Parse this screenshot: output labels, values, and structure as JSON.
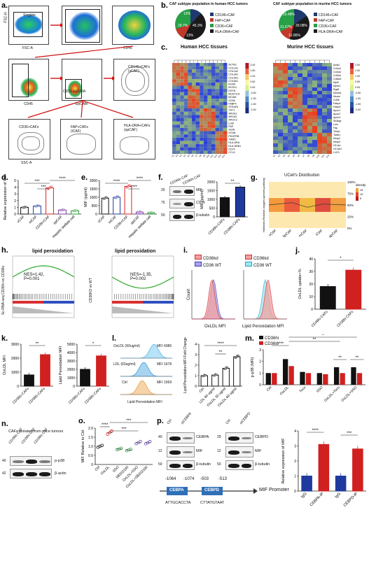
{
  "labels": {
    "a": "a.",
    "b": "b.",
    "c": "c.",
    "d": "d.",
    "e": "e.",
    "f": "f.",
    "g": "g.",
    "h": "h.",
    "i": "i.",
    "j": "j.",
    "k": "k.",
    "l": "l.",
    "m": "m.",
    "n": "n.",
    "o": "o.",
    "p": "p."
  },
  "a": {
    "gates": [
      "Singlets",
      "Live",
      "CD146+",
      "CD31-EpCAM-",
      "CD146+CAFs (vCAF)",
      "CD36+CAFs",
      "FAP+CAFs (iCAF)",
      "HLA-DRA+CAFs (apCAF)"
    ],
    "axes": [
      "FSC-H",
      "FSC-A",
      "SSC-A",
      "Livedead",
      "CD45",
      "CD31",
      "EpCAM",
      "CD146",
      "CD36",
      "FAP",
      "HLA-DRA"
    ]
  },
  "b": {
    "human_title": "CAF subtype population in human HCC tumors",
    "murine_title": "CAF subtype population in murine HCC tumors",
    "human_pcts": [
      "12%",
      "45.3%",
      "13%",
      "29.7%"
    ],
    "murine_pcts": [
      "15.48%",
      "39.08%",
      "12.86%",
      "31.67%"
    ],
    "legend": [
      "CD146+CAF",
      "FAP+CAF",
      "CD36+CAF",
      "HLA-DRA+CAF"
    ],
    "colors": [
      "#1f3a6e",
      "#c0392b",
      "#27a046",
      "#1a1a1a"
    ]
  },
  "c": {
    "human_title": "Human HCC tissues",
    "murine_title": "Murine HCC tissues",
    "human_genes": [
      "ACTA2",
      "COL1A1",
      "COL1A2",
      "COL3A1",
      "COL5A1",
      "COL6A1",
      "RGS5",
      "MYH11",
      "DSTN",
      "MUST101",
      "MCAM",
      "CD36",
      "FABP4",
      "STEAP4",
      "THY1",
      "APOA1",
      "APOA2",
      "APOC3",
      "LUM",
      "FAP",
      "SGIN",
      "VCAN",
      "PDGFRB",
      "TIMP1",
      "HLA-DRA",
      "HLA-DRB1",
      "CD74",
      "CCL5"
    ],
    "murine_genes": [
      "Acta2",
      "Col1a1",
      "Col1a2",
      "Col3a1",
      "Col6a3",
      "Myl9",
      "Myh11",
      "Rgs5",
      "Mustn1",
      "Mcam",
      "Cd36",
      "Fabp4",
      "Fabp5",
      "Apoc1",
      "Apoc2",
      "Apoc3",
      "Sh3bgr",
      "Lum",
      "Fap",
      "Timp1",
      "Twist1",
      "Mmp2",
      "Mmp3",
      "H2-Aa",
      "H2-Ab1",
      "Cd74"
    ],
    "scale": [
      "2.00",
      "1.50",
      "1.00",
      "0.50",
      "0.00",
      "-0.50",
      "-1.00",
      "-1.50",
      "-2.00"
    ]
  },
  "d": {
    "ylabel": "Relative expression of MIF",
    "categories": [
      "vCAF",
      "mCAF",
      "CD36+CAF",
      "apCAF",
      "Hepatic stellate cell"
    ],
    "values": [
      1.0,
      1.2,
      3.9,
      0.6,
      0.5
    ],
    "ylim": [
      0,
      5
    ],
    "ticks": [
      "0",
      "1",
      "2",
      "3",
      "4",
      "5"
    ],
    "sig": [
      "***",
      "***",
      "****"
    ]
  },
  "e": {
    "ylabel": "MIF (pg/ml)",
    "categories": [
      "vCAF",
      "mCAF",
      "CD36+CAF",
      "apCAF",
      "Hepatic stellate cell"
    ],
    "values": [
      950,
      1000,
      1650,
      120,
      80
    ],
    "ylim": [
      0,
      2000
    ],
    "ticks": [
      "0",
      "500",
      "1000",
      "1500",
      "2000"
    ],
    "sig": [
      "****",
      "****",
      "****"
    ]
  },
  "f": {
    "lanes": [
      "CD36lo CAF",
      "CD36hi CAF"
    ],
    "markers": [
      "25",
      "75",
      "50"
    ],
    "bands": [
      "MIF",
      "CD36",
      "β-tubulin"
    ],
    "ylabel": "MIF (pg/ml)",
    "categories": [
      "CD36lo CAFs",
      "CD36hi CAFs"
    ],
    "values": [
      1100,
      1700
    ],
    "ylim": [
      0,
      2000
    ],
    "ticks": [
      "0",
      "500",
      "1000",
      "1500",
      "2000"
    ],
    "sig": "**"
  },
  "g": {
    "title": "UCell's Distribution",
    "ylabel": "Hallmark-Reactive-oxygen-species-pathway",
    "categories": [
      "vCAF",
      "lipCAF",
      "mCAF",
      "iCAF",
      "apCAF"
    ],
    "pcts": [
      "100%",
      "75%",
      "50%",
      "25%",
      "0%"
    ],
    "legend_title": "density",
    "legend_vals": [
      "15",
      "10",
      "5"
    ]
  },
  "h": {
    "left_title": "lipid peroxidation",
    "right_title": "lipid peroxidation",
    "left_stats": "NES=1.42, P=0.001",
    "right_stats": "NES=-1.35, P=0.002",
    "left_ylabel": "Sc-RNA-seq CD36hi vs CD36lo",
    "right_ylabel": "CD36KO vs WT"
  },
  "i": {
    "legend1": [
      "CD36kd",
      "CD36 WT"
    ],
    "legend2": [
      "CD36kd",
      "CD36 WT"
    ],
    "xlabel1": "OxLDL MFI",
    "xlabel2": "Lipid Peroxidation MFI",
    "ylabel": "Count"
  },
  "j": {
    "ylabel": "OxLDL uptake+%",
    "categories": [
      "CD36lo CAFs",
      "CD36hi CAFs"
    ],
    "values": [
      18,
      31
    ],
    "ylim": [
      0,
      40
    ],
    "ticks": [
      "0",
      "10",
      "20",
      "30",
      "40"
    ],
    "sig": "*"
  },
  "k": {
    "left": {
      "ylabel": "OxLDL MFI",
      "categories": [
        "CD36lo CAFs",
        "CD36hi CAFs"
      ],
      "values": [
        800,
        2250
      ],
      "ylim": [
        0,
        3000
      ],
      "ticks": [
        "0",
        "1000",
        "2000",
        "3000"
      ],
      "sig": "**"
    },
    "right": {
      "ylabel": "Lipid Peroxidation MFI",
      "categories": [
        "CD36lo CAFs",
        "CD36hi CAFs"
      ],
      "values": [
        2000,
        3600
      ],
      "ylim": [
        0,
        5000
      ],
      "ticks": [
        "0",
        "1000",
        "2000",
        "3000",
        "4000",
        "5000"
      ],
      "sig": "*"
    }
  },
  "l": {
    "rows": [
      {
        "label": "OxLDL (60ug/ml)",
        "mfi": "MFI 4386"
      },
      {
        "label": "LDL (60ug/ml)",
        "mfi": "MFI 1678"
      },
      {
        "label": "Ctrl",
        "mfi": "MFI 1569"
      }
    ],
    "xlabel": "Lipid Peroxidation MFI",
    "ylabel": "Lipid Peroxidation MFI Fold Change",
    "categories": [
      "Ctrl",
      "LDL 60 ug/ml",
      "OxLDL 30 ug/ml",
      "OxLDL 60 ug/ml"
    ],
    "values": [
      1.0,
      1.05,
      1.7,
      2.8
    ],
    "ylim": [
      0,
      4
    ],
    "ticks": [
      "0",
      "1",
      "2",
      "3",
      "4"
    ],
    "sig": [
      "**",
      "****"
    ]
  },
  "m": {
    "legend": [
      "CD36hi",
      "CD36lo"
    ],
    "ylabel": "p-p38 (MFI)",
    "categories": [
      "Ctrl",
      "OxLDL",
      "Toco",
      "SSO",
      "OxLDL+Toco",
      "OxLDL+SSO"
    ],
    "series": [
      {
        "name": "CD36hi",
        "values": [
          1.0,
          2.2,
          1.1,
          1.0,
          1.5,
          1.5
        ]
      },
      {
        "name": "CD36lo",
        "values": [
          1.0,
          1.6,
          1.0,
          0.9,
          1.0,
          1.0
        ]
      }
    ],
    "ylim": [
      0,
      3
    ],
    "ticks": [
      "0",
      "1",
      "2",
      "3"
    ],
    "sig": [
      "****",
      "**",
      "**",
      "**",
      "**"
    ]
  },
  "n": {
    "title": "CAFs isolated from mice tumors",
    "lanes": [
      "CD36lo CAF",
      "CD36hi CAF",
      "CD36lo CAF"
    ],
    "markers": [
      "40",
      "42"
    ],
    "bands": [
      "p-p38",
      "β-actin"
    ]
  },
  "o": {
    "ylabel": "MIF Relative to Ctrl",
    "categories": [
      "Ctrl",
      "OxLDL",
      "SSO",
      "SB202190",
      "OxLDL+SSO",
      "OxLDL+SB202190"
    ],
    "values": [
      1.0,
      1.75,
      0.85,
      0.8,
      1.2,
      1.2
    ],
    "ylim": [
      0,
      2.0
    ],
    "ticks": [
      "0",
      "0.5",
      "1.0",
      "1.5",
      "2.0"
    ],
    "sig": [
      "****",
      "***",
      "***"
    ]
  },
  "p": {
    "blot1": {
      "lanes": [
        "Ctrl",
        "siCEBPA"
      ],
      "markers": [
        "40",
        "12",
        "50"
      ],
      "bands": [
        "CEBPA",
        "MIF",
        "β-tubulin"
      ]
    },
    "blot2": {
      "lanes": [
        "Ctrl",
        "siCEBPD"
      ],
      "markers": [
        "29",
        "12",
        "50"
      ],
      "bands": [
        "CEBPD",
        "MIF",
        "β-tubulin"
      ]
    },
    "promoter": {
      "pos": [
        "-1064",
        "-1074",
        "-503",
        "-513"
      ],
      "boxes": [
        "CEBPA",
        "CEBPD"
      ],
      "label": "MIF Promoter",
      "seq": [
        "ATTGCACCTA",
        "CTTATGTAAT"
      ]
    },
    "chart": {
      "ylabel": "Relative expression of MIF",
      "categories": [
        "IgG",
        "CEBPA-IP",
        "IgG",
        "CEBPD-IP"
      ],
      "values": [
        1.0,
        3.1,
        1.0,
        2.8
      ],
      "ylim": [
        0,
        4
      ],
      "ticks": [
        "0",
        "1",
        "2",
        "3",
        "4"
      ],
      "sig": [
        "****",
        "***"
      ]
    }
  },
  "chart_data": [
    {
      "type": "bar",
      "panel": "d",
      "title": "",
      "ylabel": "Relative expression of MIF",
      "categories": [
        "vCAF",
        "mCAF",
        "CD36+CAF",
        "apCAF",
        "Hepatic stellate cell"
      ],
      "values": [
        1.0,
        1.2,
        3.9,
        0.6,
        0.5
      ],
      "ylim": [
        0,
        5
      ]
    },
    {
      "type": "bar",
      "panel": "e",
      "ylabel": "MIF (pg/ml)",
      "categories": [
        "vCAF",
        "mCAF",
        "CD36+CAF",
        "apCAF",
        "Hepatic stellate cell"
      ],
      "values": [
        950,
        1000,
        1650,
        120,
        80
      ],
      "ylim": [
        0,
        2000
      ]
    },
    {
      "type": "bar",
      "panel": "f",
      "ylabel": "MIF (pg/ml)",
      "categories": [
        "CD36lo CAFs",
        "CD36hi CAFs"
      ],
      "values": [
        1100,
        1700
      ],
      "ylim": [
        0,
        2000
      ]
    },
    {
      "type": "bar",
      "panel": "j",
      "ylabel": "OxLDL uptake+%",
      "categories": [
        "CD36lo CAFs",
        "CD36hi CAFs"
      ],
      "values": [
        18,
        31
      ],
      "ylim": [
        0,
        40
      ]
    },
    {
      "type": "bar",
      "panel": "k-left",
      "ylabel": "OxLDL MFI",
      "categories": [
        "CD36lo CAFs",
        "CD36hi CAFs"
      ],
      "values": [
        800,
        2250
      ],
      "ylim": [
        0,
        3000
      ]
    },
    {
      "type": "bar",
      "panel": "k-right",
      "ylabel": "Lipid Peroxidation MFI",
      "categories": [
        "CD36lo CAFs",
        "CD36hi CAFs"
      ],
      "values": [
        2000,
        3600
      ],
      "ylim": [
        0,
        5000
      ]
    },
    {
      "type": "bar",
      "panel": "l",
      "ylabel": "Lipid Peroxidation MFI Fold Change",
      "categories": [
        "Ctrl",
        "LDL 60 ug/ml",
        "OxLDL 30 ug/ml",
        "OxLDL 60 ug/ml"
      ],
      "values": [
        1.0,
        1.05,
        1.7,
        2.8
      ],
      "ylim": [
        0,
        4
      ]
    },
    {
      "type": "bar",
      "panel": "m",
      "ylabel": "p-p38 (MFI)",
      "categories": [
        "Ctrl",
        "OxLDL",
        "Toco",
        "SSO",
        "OxLDL+Toco",
        "OxLDL+SSO"
      ],
      "series": [
        {
          "name": "CD36hi",
          "values": [
            1.0,
            2.2,
            1.1,
            1.0,
            1.5,
            1.5
          ]
        },
        {
          "name": "CD36lo",
          "values": [
            1.0,
            1.6,
            1.0,
            0.9,
            1.0,
            1.0
          ]
        }
      ],
      "ylim": [
        0,
        3
      ]
    },
    {
      "type": "scatter",
      "panel": "o",
      "ylabel": "MIF Relative to Ctrl",
      "categories": [
        "Ctrl",
        "OxLDL",
        "SSO",
        "SB202190",
        "OxLDL+SSO",
        "OxLDL+SB202190"
      ],
      "values": [
        1.0,
        1.75,
        0.85,
        0.8,
        1.2,
        1.2
      ],
      "ylim": [
        0,
        2.0
      ]
    },
    {
      "type": "bar",
      "panel": "p",
      "ylabel": "Relative expression of MIF",
      "categories": [
        "IgG",
        "CEBPA-IP",
        "IgG",
        "CEBPD-IP"
      ],
      "values": [
        1.0,
        3.1,
        1.0,
        2.8
      ],
      "ylim": [
        0,
        4
      ]
    }
  ]
}
